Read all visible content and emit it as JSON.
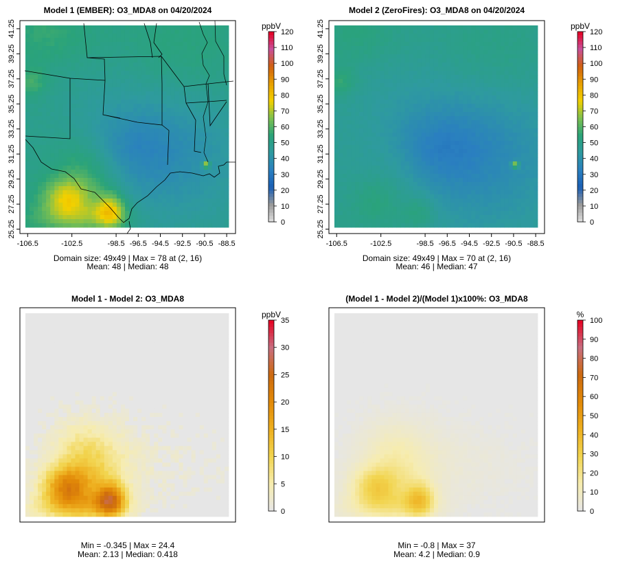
{
  "colors": {
    "conc_scale": [
      "#e0e0e0",
      "#9a9a9a",
      "#1a5fb4",
      "#2a7fc0",
      "#2e9aa0",
      "#2aa37a",
      "#7cc050",
      "#f2d000",
      "#e8a000",
      "#d06010",
      "#c8509a",
      "#e60020"
    ],
    "diff_scale": [
      "#e6e6e6",
      "#f6ecb0",
      "#f2d550",
      "#eeb020",
      "#e28a08",
      "#cc6a10",
      "#c86e80",
      "#e60020"
    ],
    "map_background": "#e6e6e6",
    "border_line": "#000000"
  },
  "chart_data": [
    {
      "type": "heatmap",
      "id": "p1",
      "title": "Model 1 (EMBER): O3_MDA8 on 04/20/2024",
      "x_ticks": [
        "-106.5",
        "-102.5",
        "-98.5",
        "-96.5",
        "-94.5",
        "-92.5",
        "-90.5",
        "-88.5"
      ],
      "x_tick_values": [
        -106.5,
        -102.5,
        -98.5,
        -96.5,
        -94.5,
        -92.5,
        -90.5,
        -88.5
      ],
      "y_ticks": [
        "25.25",
        "27.25",
        "29.25",
        "31.25",
        "33.25",
        "35.25",
        "37.25",
        "39.25",
        "41.25"
      ],
      "y_tick_values": [
        25.25,
        27.25,
        29.25,
        31.25,
        33.25,
        35.25,
        37.25,
        39.25,
        41.25
      ],
      "x_range": [
        -107.2,
        -87.7
      ],
      "y_range": [
        24.9,
        41.9
      ],
      "grid_lon": [
        -106.4,
        -88.6
      ],
      "grid_lat": [
        25.1,
        41.2
      ],
      "grid_size": [
        49,
        49
      ],
      "colorbar": {
        "unit": "ppbV",
        "ticks": [
          "0",
          "10",
          "20",
          "30",
          "40",
          "50",
          "60",
          "70",
          "80",
          "90",
          "100",
          "110",
          "120"
        ],
        "min": 0,
        "max": 120,
        "scale": "conc"
      },
      "summary": {
        "domain_size": "49x49",
        "max": 78,
        "max_location": "(2, 16)",
        "mean": 48,
        "median": 48
      },
      "stats_line1": "Domain size: 49x49 | Max = 78 at (2, 16)",
      "stats_line2": "Mean: 48 |  Median: 48"
    },
    {
      "type": "heatmap",
      "id": "p2",
      "title": "Model 2 (ZeroFires): O3_MDA8 on 04/20/2024",
      "x_ticks": [
        "-106.5",
        "-102.5",
        "-98.5",
        "-96.5",
        "-94.5",
        "-92.5",
        "-90.5",
        "-88.5"
      ],
      "x_tick_values": [
        -106.5,
        -102.5,
        -98.5,
        -96.5,
        -94.5,
        -92.5,
        -90.5,
        -88.5
      ],
      "y_ticks": [
        "25.25",
        "27.25",
        "29.25",
        "31.25",
        "33.25",
        "35.25",
        "37.25",
        "39.25",
        "41.25"
      ],
      "y_tick_values": [
        25.25,
        27.25,
        29.25,
        31.25,
        33.25,
        35.25,
        37.25,
        39.25,
        41.25
      ],
      "x_range": [
        -107.2,
        -87.7
      ],
      "y_range": [
        24.9,
        41.9
      ],
      "grid_lon": [
        -106.4,
        -88.6
      ],
      "grid_lat": [
        25.1,
        41.2
      ],
      "grid_size": [
        49,
        49
      ],
      "colorbar": {
        "unit": "ppbV",
        "ticks": [
          "0",
          "10",
          "20",
          "30",
          "40",
          "50",
          "60",
          "70",
          "80",
          "90",
          "100",
          "110",
          "120"
        ],
        "min": 0,
        "max": 120,
        "scale": "conc"
      },
      "summary": {
        "domain_size": "49x49",
        "max": 70,
        "max_location": "(2, 16)",
        "mean": 46,
        "median": 47
      },
      "stats_line1": "Domain size: 49x49 | Max = 70 at (2, 16)",
      "stats_line2": "Mean: 46 |  Median: 47"
    },
    {
      "type": "heatmap",
      "id": "p3",
      "title": "Model 1 - Model 2: O3_MDA8",
      "x_ticks": [],
      "y_ticks": [],
      "x_range": [
        -107.2,
        -87.7
      ],
      "y_range": [
        24.9,
        41.9
      ],
      "grid_lon": [
        -106.4,
        -88.6
      ],
      "grid_lat": [
        25.1,
        41.2
      ],
      "grid_size": [
        49,
        49
      ],
      "colorbar": {
        "unit": "ppbV",
        "ticks": [
          "0",
          "5",
          "10",
          "15",
          "20",
          "25",
          "30",
          "35"
        ],
        "min": 0,
        "max": 35,
        "scale": "diff"
      },
      "summary": {
        "min": -0.345,
        "max": 24.4,
        "mean": 2.13,
        "median": 0.418
      },
      "stats_line1": "Min = -0.345 | Max = 24.4",
      "stats_line2": "Mean: 2.13 |  Median: 0.418"
    },
    {
      "type": "heatmap",
      "id": "p4",
      "title": "(Model 1 - Model 2)/(Model 1)x100%: O3_MDA8",
      "x_ticks": [],
      "y_ticks": [],
      "x_range": [
        -107.2,
        -87.7
      ],
      "y_range": [
        24.9,
        41.9
      ],
      "grid_lon": [
        -106.4,
        -88.6
      ],
      "grid_lat": [
        25.1,
        41.2
      ],
      "grid_size": [
        49,
        49
      ],
      "colorbar": {
        "unit": "%",
        "ticks": [
          "0",
          "10",
          "20",
          "30",
          "40",
          "50",
          "60",
          "70",
          "80",
          "90",
          "100"
        ],
        "min": 0,
        "max": 100,
        "scale": "diff"
      },
      "summary": {
        "min": -0.8,
        "max": 37,
        "mean": 4.2,
        "median": 0.9
      },
      "stats_line1": "Min = -0.8 | Max = 37",
      "stats_line2": "Mean: 4.2 |  Median: 0.9"
    }
  ]
}
